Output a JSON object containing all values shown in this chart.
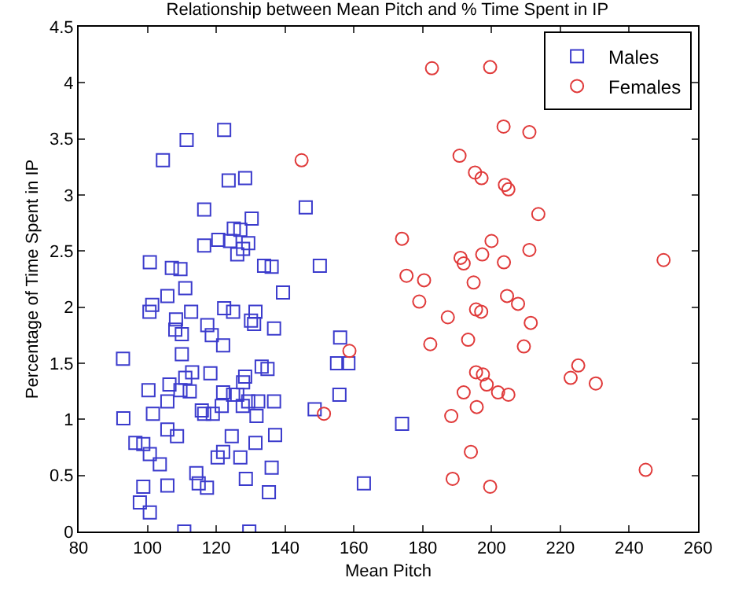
{
  "chart_data": {
    "type": "scatter",
    "title": "Relationship between Mean Pitch and % Time Spent in IP",
    "xlabel": "Mean Pitch",
    "ylabel": "Percentage of Time Spent in IP",
    "xlim": [
      80,
      260
    ],
    "xticks": [
      80,
      100,
      120,
      140,
      160,
      180,
      200,
      220,
      240,
      260
    ],
    "ylim": [
      0,
      4.5
    ],
    "yticks": [
      0,
      0.5,
      1,
      1.5,
      2,
      2.5,
      3,
      3.5,
      4,
      4.5
    ],
    "grid": false,
    "legend": "top right",
    "series": [
      {
        "name": "Males",
        "color": "#3b3bcc",
        "marker": "square",
        "x": [
          122.3,
          111.4,
          104.5,
          123.6,
          128.4,
          116.5,
          130.3,
          125.1,
          127.0,
          120.6,
          116.5,
          124.0,
          129.3,
          127.8,
          126.1,
          100.7,
          107.1,
          109.6,
          133.9,
          136.1,
          111.0,
          139.4,
          105.8,
          101.4,
          100.6,
          112.7,
          122.3,
          124.9,
          131.4,
          130.1,
          131.0,
          108.3,
          108.1,
          110.0,
          117.4,
          118.7,
          122.0,
          136.8,
          110.0,
          92.9,
          118.3,
          113.0,
          111.0,
          106.4,
          109.6,
          112.3,
          100.3,
          128.4,
          127.8,
          133.2,
          134.9,
          122.0,
          124.9,
          126.1,
          105.8,
          121.6,
          129.3,
          132.2,
          127.7,
          136.8,
          115.8,
          116.5,
          119.0,
          131.7,
          101.6,
          93.0,
          105.8,
          108.6,
          124.5,
          137.1,
          96.5,
          98.8,
          100.7,
          131.4,
          122.0,
          120.4,
          127.0,
          103.6,
          136.1,
          114.2,
          114.9,
          117.3,
          128.6,
          98.8,
          105.8,
          135.3,
          97.8,
          100.7,
          110.7,
          129.6,
          146.0,
          150.1,
          156.0,
          155.1,
          158.4,
          155.8,
          148.6,
          174.0,
          162.9
        ],
        "values": [
          3.58,
          3.49,
          3.31,
          3.13,
          3.15,
          2.87,
          2.79,
          2.7,
          2.69,
          2.6,
          2.55,
          2.59,
          2.57,
          2.52,
          2.47,
          2.4,
          2.35,
          2.34,
          2.37,
          2.36,
          2.17,
          2.13,
          2.1,
          2.02,
          1.96,
          1.96,
          1.99,
          1.96,
          1.96,
          1.88,
          1.85,
          1.89,
          1.8,
          1.76,
          1.84,
          1.75,
          1.66,
          1.81,
          1.58,
          1.54,
          1.41,
          1.42,
          1.37,
          1.31,
          1.26,
          1.25,
          1.26,
          1.38,
          1.33,
          1.47,
          1.45,
          1.24,
          1.22,
          1.22,
          1.16,
          1.12,
          1.16,
          1.16,
          1.12,
          1.16,
          1.08,
          1.05,
          1.05,
          1.03,
          1.05,
          1.01,
          0.91,
          0.85,
          0.85,
          0.86,
          0.79,
          0.78,
          0.69,
          0.79,
          0.71,
          0.66,
          0.66,
          0.6,
          0.57,
          0.52,
          0.43,
          0.39,
          0.47,
          0.4,
          0.41,
          0.35,
          0.26,
          0.17,
          0.0,
          0.0,
          2.89,
          2.37,
          1.73,
          1.5,
          1.5,
          1.22,
          1.09,
          0.96,
          0.43
        ]
      },
      {
        "name": "Females",
        "color": "#e03a3a",
        "marker": "circle",
        "x": [
          182.7,
          199.6,
          144.8,
          190.7,
          195.2,
          197.1,
          203.5,
          211.0,
          203.9,
          204.9,
          213.6,
          174.0,
          200.0,
          191.0,
          191.9,
          197.3,
          175.3,
          180.4,
          194.8,
          203.6,
          211.0,
          250.0,
          179.0,
          187.3,
          195.5,
          197.0,
          204.5,
          207.7,
          211.4,
          209.4,
          182.2,
          193.2,
          158.7,
          195.5,
          197.5,
          198.6,
          191.9,
          201.9,
          204.9,
          225.2,
          223.0,
          230.3,
          195.7,
          188.3,
          151.3,
          194.0,
          188.7,
          199.6,
          244.8
        ],
        "values": [
          4.13,
          4.14,
          3.31,
          3.35,
          3.2,
          3.15,
          3.61,
          3.56,
          3.09,
          3.05,
          2.83,
          2.61,
          2.59,
          2.44,
          2.39,
          2.47,
          2.28,
          2.24,
          2.22,
          2.4,
          2.51,
          2.42,
          2.05,
          1.91,
          1.98,
          1.96,
          2.1,
          2.03,
          1.86,
          1.65,
          1.67,
          1.71,
          1.61,
          1.42,
          1.4,
          1.31,
          1.24,
          1.24,
          1.22,
          1.48,
          1.37,
          1.32,
          1.11,
          1.03,
          1.05,
          0.71,
          0.47,
          0.4,
          0.55
        ]
      }
    ]
  }
}
